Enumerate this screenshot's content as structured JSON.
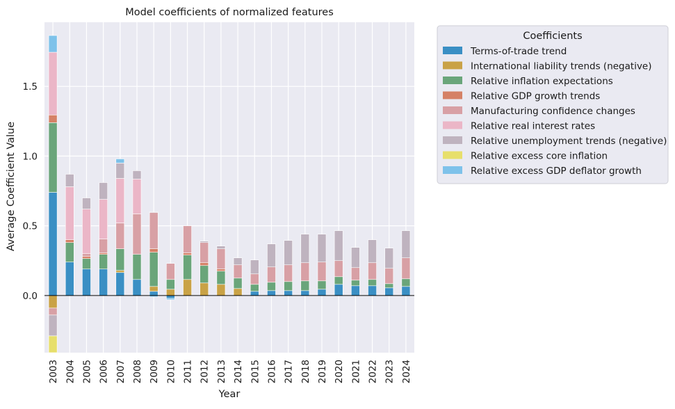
{
  "chart_data": {
    "type": "bar",
    "stacked": true,
    "title": "Model coefficients of normalized features",
    "xlabel": "Year",
    "ylabel": "Average Coefficient Value",
    "ylim": [
      -0.41,
      1.96
    ],
    "yticks": [
      0.0,
      0.5,
      1.0,
      1.5
    ],
    "ytick_labels": [
      "0.0",
      "0.5",
      "1.0",
      "1.5"
    ],
    "grid": true,
    "legend_title": "Coefficients",
    "legend_position": "outside-right",
    "categories": [
      "2003",
      "2004",
      "2005",
      "2006",
      "2007",
      "2008",
      "2009",
      "2010",
      "2011",
      "2012",
      "2013",
      "2014",
      "2015",
      "2016",
      "2017",
      "2018",
      "2019",
      "2020",
      "2021",
      "2022",
      "2023",
      "2024"
    ],
    "series": [
      {
        "name": "Terms-of-trade trend",
        "color": "#3a8fc4",
        "values": [
          0.74,
          0.24,
          0.19,
          0.19,
          0.165,
          0.115,
          0.03,
          -0.02,
          0,
          0,
          0,
          0,
          0.03,
          0.035,
          0.035,
          0.035,
          0.045,
          0.08,
          0.07,
          0.07,
          0.055,
          0.065
        ]
      },
      {
        "name": "International liability trends (negative)",
        "color": "#c9a246",
        "values": [
          -0.09,
          0,
          0,
          0,
          0.015,
          0,
          0.035,
          0.045,
          0.115,
          0.09,
          0.08,
          0.05,
          0,
          0,
          0,
          0,
          0,
          0,
          0,
          0,
          0,
          0
        ]
      },
      {
        "name": "Relative inflation expectations",
        "color": "#6aa57a",
        "values": [
          0.5,
          0.14,
          0.075,
          0.105,
          0.155,
          0.18,
          0.245,
          0.07,
          0.175,
          0.125,
          0.095,
          0.075,
          0.05,
          0.06,
          0.065,
          0.07,
          0.06,
          0.055,
          0.04,
          0.045,
          0.03,
          0.055
        ]
      },
      {
        "name": "Relative GDP growth trends",
        "color": "#d58166",
        "values": [
          0.055,
          0.02,
          0.015,
          0.01,
          0,
          0,
          0.025,
          0,
          0.015,
          0.02,
          0.015,
          0,
          0,
          0,
          0,
          0,
          0,
          0,
          0,
          0,
          0,
          0
        ]
      },
      {
        "name": "Manufacturing confidence changes",
        "color": "#d8a0a5",
        "values": [
          -0.05,
          0,
          0.02,
          0.1,
          0.185,
          0.29,
          0.26,
          0.115,
          0.195,
          0.145,
          0.145,
          0.095,
          0.075,
          0.11,
          0.12,
          0.13,
          0.135,
          0.115,
          0.09,
          0.12,
          0.11,
          0.15
        ]
      },
      {
        "name": "Relative real interest rates",
        "color": "#ebb6c7",
        "values": [
          0.45,
          0.38,
          0.32,
          0.285,
          0.32,
          0.25,
          0,
          0,
          0,
          0,
          0,
          0,
          0,
          0,
          0,
          0,
          0,
          0,
          0,
          0,
          0,
          0
        ]
      },
      {
        "name": "Relative unemployment trends (negative)",
        "color": "#bfb3bf",
        "values": [
          -0.15,
          0.09,
          0.08,
          0.12,
          0.11,
          0.06,
          0.005,
          0,
          0,
          0.01,
          0.02,
          0.05,
          0.1,
          0.165,
          0.175,
          0.205,
          0.2,
          0.215,
          0.145,
          0.165,
          0.145,
          0.195
        ]
      },
      {
        "name": "Relative excess core inflation",
        "color": "#e7df6b",
        "values": [
          -0.12,
          0,
          0,
          0,
          0,
          0,
          0,
          0,
          0,
          0,
          0,
          0,
          0,
          0,
          0,
          0,
          0,
          0,
          0,
          0,
          0,
          0
        ]
      },
      {
        "name": "Relative excess GDP deflator growth",
        "color": "#7ec2ea",
        "values": [
          0.12,
          0,
          0,
          0,
          0.03,
          0,
          -0.01,
          -0.01,
          0,
          0,
          0,
          0,
          0,
          0,
          0,
          0,
          0,
          0,
          0,
          0,
          0,
          0
        ]
      }
    ]
  }
}
